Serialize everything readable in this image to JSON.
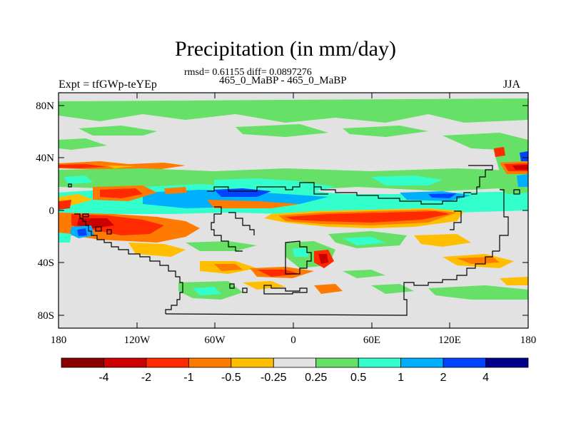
{
  "header": {
    "title": "Precipitation (in mm/day)",
    "stats": "rmsd= 0.61155 diff= 0.0897276",
    "subtitle": "465_0_MaBP - 465_0_MaBP",
    "left_label": "Expt = tfGWp-teYEp",
    "right_label": "JJA"
  },
  "map": {
    "background_color": "#e2e2e2",
    "y_ticks": [
      "80N",
      "40N",
      "0",
      "40S",
      "80S"
    ],
    "x_ticks": [
      "180",
      "120W",
      "60W",
      "0",
      "60E",
      "120E",
      "180"
    ]
  },
  "colorbar": {
    "labels": [
      "-4",
      "-2",
      "-1",
      "-0.5",
      "-0.25",
      "0.25",
      "0.5",
      "1",
      "2",
      "4"
    ],
    "colors": [
      "#8a0000",
      "#cc0000",
      "#ff2a00",
      "#ff7a00",
      "#ffbf00",
      "#e2e2e2",
      "#66e066",
      "#33ffcc",
      "#00b0ff",
      "#0044ff",
      "#00008a"
    ]
  }
}
